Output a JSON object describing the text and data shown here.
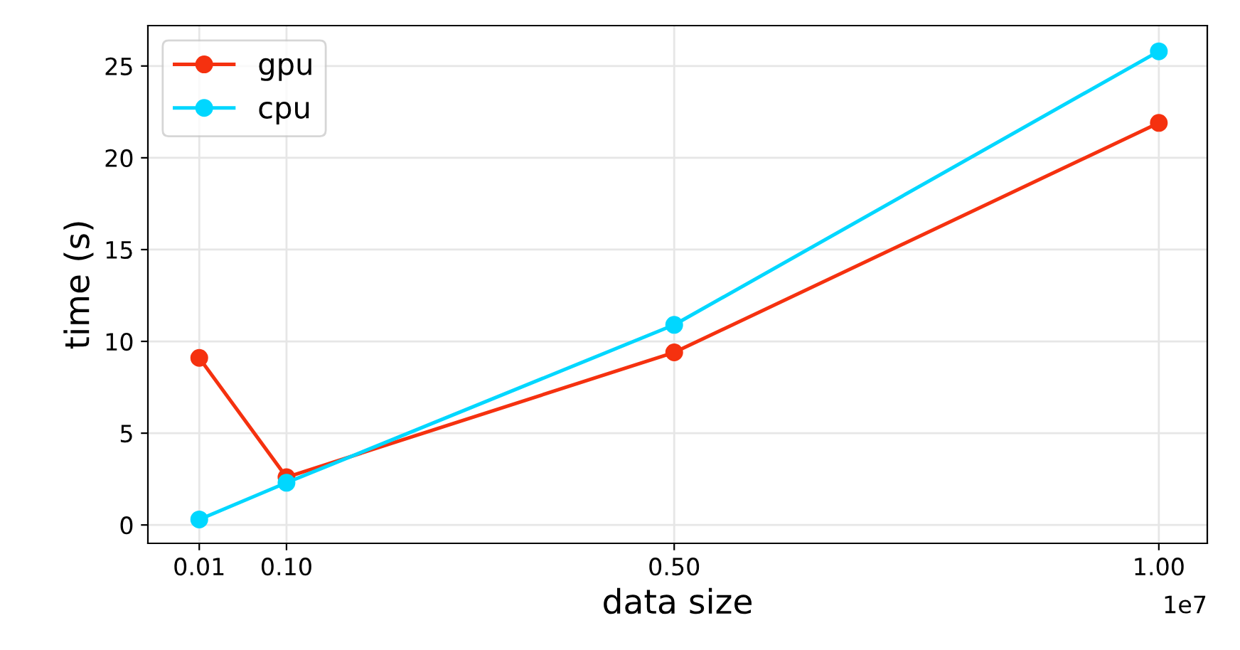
{
  "chart_data": {
    "type": "line",
    "xlabel": "data size",
    "ylabel": "time (s)",
    "x": [
      0.01,
      0.1,
      0.5,
      1.0
    ],
    "series": [
      {
        "name": "gpu",
        "color": "#f5310f",
        "values": [
          9.1,
          2.6,
          9.4,
          21.9
        ]
      },
      {
        "name": "cpu",
        "color": "#00d7ff",
        "values": [
          0.3,
          2.3,
          10.9,
          25.8
        ]
      }
    ],
    "xlim": [
      -0.043,
      1.05
    ],
    "xticks": [
      {
        "value": 0.01,
        "label": "0.01"
      },
      {
        "value": 0.1,
        "label": "0.10"
      },
      {
        "value": 0.5,
        "label": "0.50"
      },
      {
        "value": 1.0,
        "label": "1.00"
      }
    ],
    "ylim": [
      -1.0,
      27.2
    ],
    "yticks": [
      0,
      5,
      10,
      15,
      20,
      25
    ],
    "annotations": [
      "1e7"
    ],
    "grid": true,
    "legend": "top left",
    "marker": "circle",
    "line_style": "solid"
  }
}
